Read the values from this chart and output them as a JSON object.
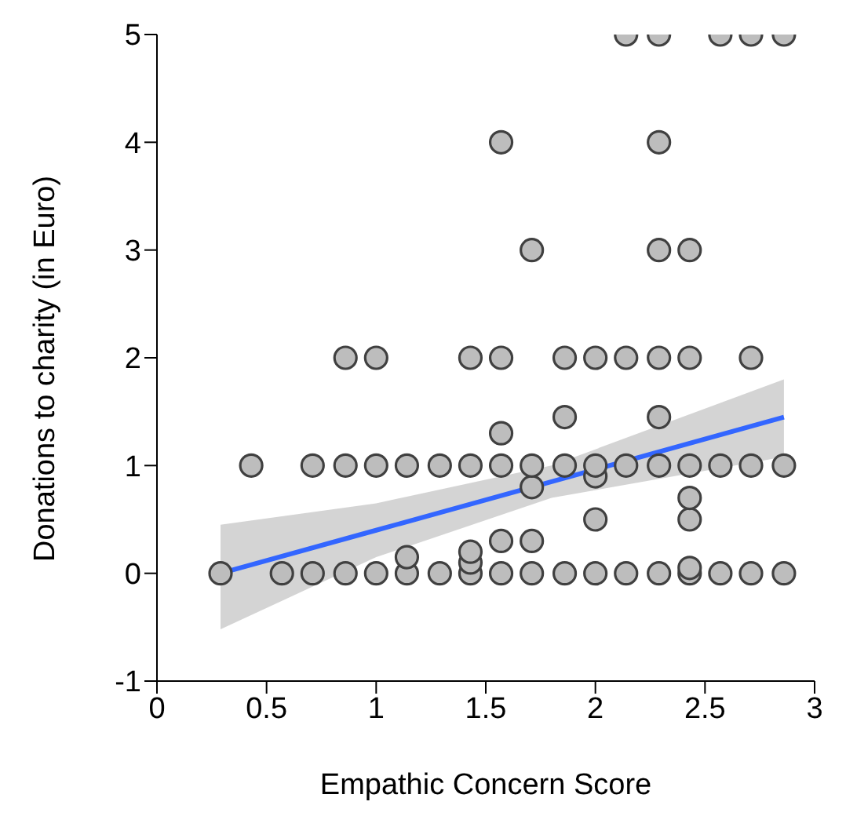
{
  "chart_data": {
    "type": "scatter",
    "xlabel": "Empathic Concern Score",
    "ylabel": "Donations to charity (in Euro)",
    "xlim": [
      0,
      3
    ],
    "ylim": [
      -1,
      5
    ],
    "xticks": [
      0,
      0.5,
      1,
      1.5,
      2,
      2.5,
      3
    ],
    "yticks": [
      -1,
      0,
      1,
      2,
      3,
      4,
      5
    ],
    "grid": false,
    "legend": false,
    "series": [
      {
        "marker": "circle",
        "color": "#bdbdbd",
        "x": [
          0.29,
          0.43,
          0.57,
          0.71,
          0.71,
          0.86,
          0.86,
          0.86,
          1,
          1,
          1,
          1.14,
          1.14,
          1.14,
          1.29,
          1.29,
          1.43,
          1.43,
          1.43,
          1.43,
          1.43,
          1.57,
          1.57,
          1.57,
          1.57,
          1.57,
          1.57,
          1.71,
          1.71,
          1.71,
          1.71,
          1.71,
          1.86,
          1.86,
          1.86,
          1.86,
          2,
          2,
          2,
          2,
          2,
          2.14,
          2.14,
          2.14,
          2.14,
          2.29,
          2.29,
          2.29,
          2.29,
          2.29,
          2.29,
          2.29,
          2.43,
          2.43,
          2.43,
          2.43,
          2.43,
          2.43,
          2.43,
          2.57,
          2.57,
          2.57,
          2.71,
          2.71,
          2.71,
          2.71,
          2.86,
          2.86,
          2.86
        ],
        "values": [
          0,
          1,
          0,
          0,
          1,
          0,
          1,
          2,
          0,
          1,
          2,
          0,
          0.15,
          1,
          0,
          1,
          0,
          0.1,
          0.2,
          1,
          2,
          0,
          0.3,
          1,
          1.3,
          2,
          4,
          0,
          0.3,
          0.8,
          1,
          3,
          0,
          1,
          1.45,
          2,
          0,
          0.5,
          0.9,
          1,
          2,
          0,
          1,
          2,
          5,
          0,
          1,
          1.45,
          2,
          3,
          4,
          5,
          0,
          0.05,
          0.5,
          0.7,
          1,
          2,
          3,
          0,
          1,
          5,
          0,
          1,
          2,
          5,
          0,
          1,
          5
        ]
      },
      {
        "type": "line",
        "marker": "none",
        "color": "#3366ff",
        "x": [
          0.29,
          1,
          1.8,
          2.86
        ],
        "values": [
          0,
          0.4,
          0.85,
          1.45
        ],
        "lower": [
          -0.52,
          0.15,
          0.7,
          1.08
        ],
        "upper": [
          0.45,
          0.65,
          1,
          1.8
        ]
      }
    ]
  }
}
